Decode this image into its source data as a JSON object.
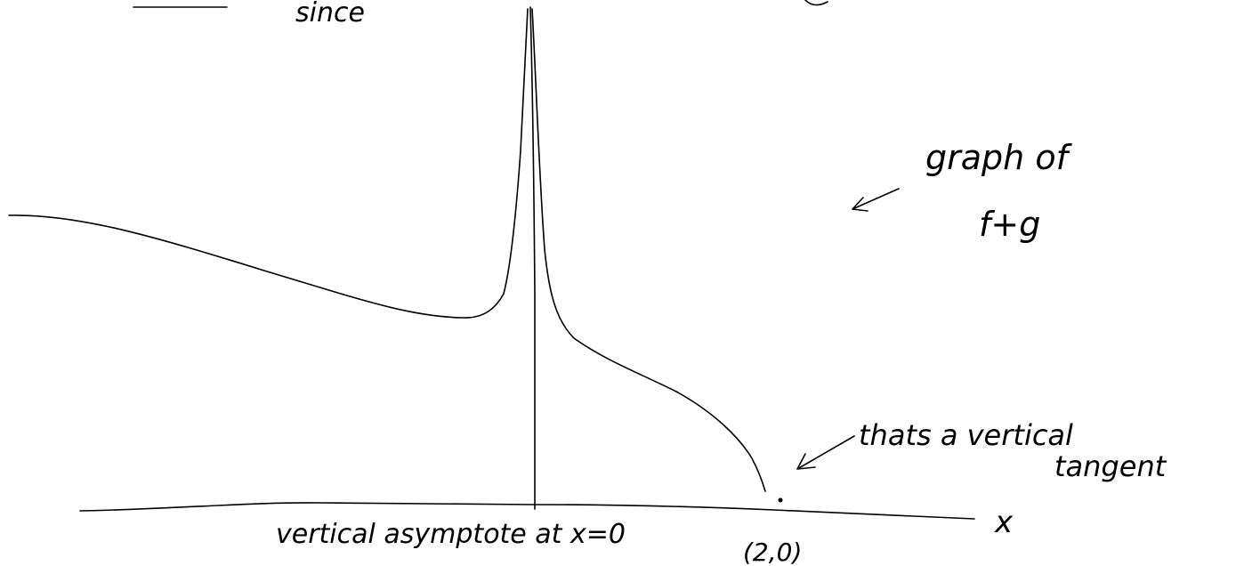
{
  "notes": {
    "top": "since",
    "graph_label": [
      "graph of",
      "f+g"
    ],
    "tangent_label": [
      "thats a vertical",
      "tangent"
    ],
    "asymptote_label": "vertical asymptote at x=0",
    "point_label": "(2,0)",
    "axis_label": "x"
  }
}
